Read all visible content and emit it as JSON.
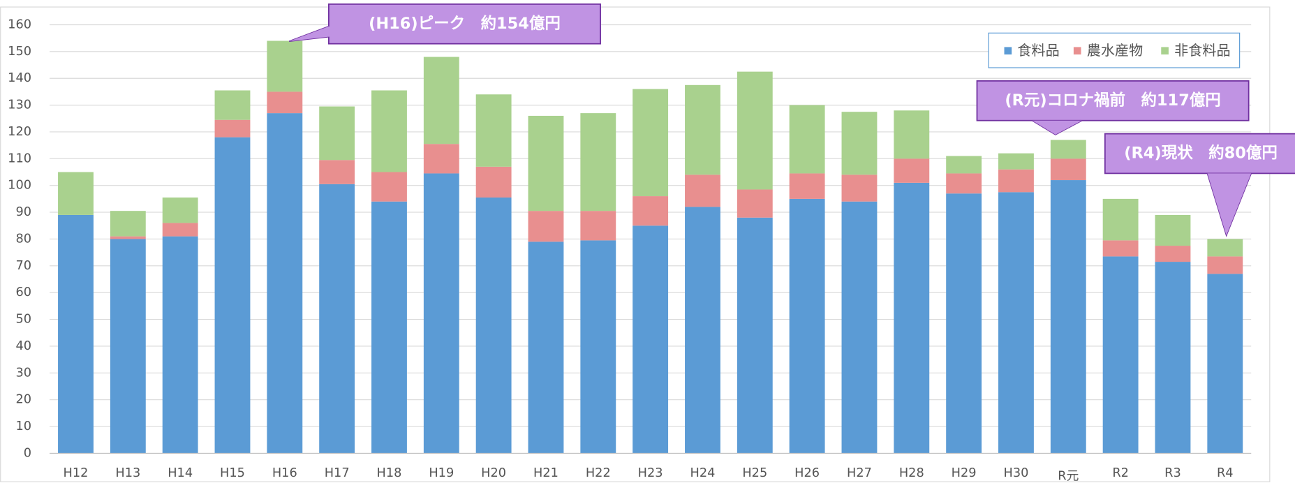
{
  "chart_data": {
    "type": "stacked_bar",
    "categories": [
      "H12",
      "H13",
      "H14",
      "H15",
      "H16",
      "H17",
      "H18",
      "H19",
      "H20",
      "H21",
      "H22",
      "H23",
      "H24",
      "H25",
      "H26",
      "H27",
      "H28",
      "H29",
      "H30",
      "R元",
      "R2",
      "R3",
      "R4"
    ],
    "series": [
      {
        "name": "食料品",
        "color": "#5b9bd5",
        "values": [
          89,
          80,
          81,
          118,
          127,
          100.5,
          94,
          104.5,
          95.5,
          79,
          79.5,
          85,
          92,
          88,
          95,
          94,
          101,
          97,
          97.5,
          102,
          73.5,
          71.5,
          67
        ]
      },
      {
        "name": "農水産物",
        "color": "#e88f8f",
        "values": [
          0,
          1,
          5,
          6.5,
          8,
          9,
          11,
          11,
          11.5,
          11.5,
          11,
          11,
          12,
          10.5,
          9.5,
          10,
          9,
          7.5,
          8.5,
          8,
          6,
          6,
          6.5
        ]
      },
      {
        "name": "非食料品",
        "color": "#a9d18e",
        "values": [
          16,
          9.5,
          9.5,
          11,
          19,
          20,
          30.5,
          32.5,
          27,
          35.5,
          36.5,
          40,
          33.5,
          44,
          25.5,
          23.5,
          18,
          6.5,
          6,
          7,
          15.5,
          11.5,
          6.5
        ]
      }
    ],
    "ylim": [
      0,
      160
    ],
    "yticks": [
      0,
      10,
      20,
      30,
      40,
      50,
      60,
      70,
      80,
      90,
      100,
      110,
      120,
      130,
      140,
      150,
      160
    ],
    "grid": true,
    "legend": "top-right",
    "annotations": [
      {
        "text": "(H16)ピーク　約154億円"
      },
      {
        "text": "(R元)コロナ禍前　約117億円"
      },
      {
        "text": "(R4)現状　約80億円"
      }
    ]
  }
}
